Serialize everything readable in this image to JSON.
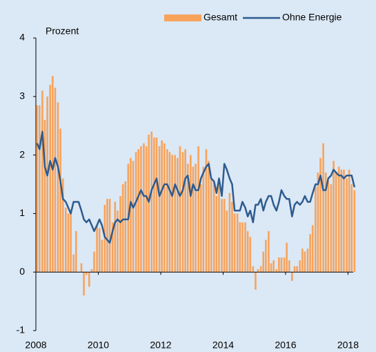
{
  "chart_data": {
    "type": "bar_line",
    "y_label": "Prozent",
    "xlim": [
      2008,
      2018.3
    ],
    "xticks": [
      2008,
      2010,
      2012,
      2014,
      2016,
      2018
    ],
    "ylim": [
      -1,
      4
    ],
    "yticks": [
      -1,
      0,
      1,
      2,
      3,
      4
    ],
    "legend": "top-right",
    "x": [
      2008,
      2008.08,
      2008.17,
      2008.25,
      2008.33,
      2008.42,
      2008.5,
      2008.58,
      2008.67,
      2008.75,
      2008.83,
      2008.92,
      2009,
      2009.08,
      2009.17,
      2009.25,
      2009.33,
      2009.42,
      2009.5,
      2009.58,
      2009.67,
      2009.75,
      2009.83,
      2009.92,
      2010,
      2010.08,
      2010.17,
      2010.25,
      2010.33,
      2010.42,
      2010.5,
      2010.58,
      2010.67,
      2010.75,
      2010.83,
      2010.92,
      2011,
      2011.08,
      2011.17,
      2011.25,
      2011.33,
      2011.42,
      2011.5,
      2011.58,
      2011.67,
      2011.75,
      2011.83,
      2011.92,
      2012,
      2012.08,
      2012.17,
      2012.25,
      2012.33,
      2012.42,
      2012.5,
      2012.58,
      2012.67,
      2012.75,
      2012.83,
      2012.92,
      2013,
      2013.08,
      2013.17,
      2013.25,
      2013.33,
      2013.42,
      2013.5,
      2013.58,
      2013.67,
      2013.75,
      2013.83,
      2013.92,
      2014,
      2014.08,
      2014.17,
      2014.25,
      2014.33,
      2014.42,
      2014.5,
      2014.58,
      2014.67,
      2014.75,
      2014.83,
      2014.92,
      2015,
      2015.08,
      2015.17,
      2015.25,
      2015.33,
      2015.42,
      2015.5,
      2015.58,
      2015.67,
      2015.75,
      2015.83,
      2015.92,
      2016,
      2016.08,
      2016.17,
      2016.25,
      2016.33,
      2016.42,
      2016.5,
      2016.58,
      2016.67,
      2016.75,
      2016.83,
      2016.92,
      2017,
      2017.08,
      2017.17,
      2017.25,
      2017.33,
      2017.42,
      2017.5,
      2017.58,
      2017.67,
      2017.75,
      2017.83,
      2017.92,
      2018,
      2018.08,
      2018.17
    ],
    "series": [
      {
        "name": "Gesamt",
        "type": "bar",
        "color": "#f7a35c",
        "values": [
          2.85,
          2.85,
          3.1,
          2.6,
          3.0,
          3.2,
          3.35,
          3.15,
          2.9,
          2.45,
          1.6,
          1.1,
          1.0,
          1.0,
          0.3,
          0.7,
          0.0,
          0.15,
          -0.4,
          -0.05,
          -0.25,
          0.05,
          0.35,
          0.8,
          0.75,
          0.55,
          1.15,
          1.25,
          1.25,
          0.85,
          1.2,
          1.05,
          1.3,
          1.5,
          1.55,
          1.85,
          1.95,
          1.9,
          2.05,
          2.1,
          2.15,
          2.2,
          2.15,
          2.35,
          2.4,
          2.3,
          2.3,
          2.15,
          2.25,
          2.2,
          2.1,
          2.05,
          2.0,
          2.0,
          1.95,
          2.15,
          2.05,
          2.1,
          1.85,
          2.0,
          1.8,
          1.85,
          2.15,
          1.5,
          1.8,
          2.1,
          1.9,
          1.6,
          1.55,
          1.3,
          1.6,
          1.25,
          1.25,
          1.05,
          1.35,
          1.2,
          1.0,
          1.0,
          0.85,
          0.85,
          0.85,
          0.7,
          0.6,
          0.1,
          -0.3,
          0.05,
          0.1,
          0.35,
          0.55,
          0.7,
          0.15,
          0.2,
          0.05,
          0.25,
          0.25,
          0.25,
          0.5,
          0.2,
          -0.15,
          0.1,
          0.1,
          0.2,
          0.4,
          0.35,
          0.4,
          0.65,
          0.8,
          1.45,
          1.7,
          1.95,
          2.2,
          1.7,
          1.55,
          1.5,
          1.9,
          1.7,
          1.8,
          1.75,
          1.75,
          1.6,
          1.75,
          1.5,
          1.4
        ]
      },
      {
        "name": "Ohne Energie",
        "type": "line",
        "color": "#2d5b8e",
        "values": [
          2.2,
          2.1,
          2.4,
          1.8,
          1.65,
          1.9,
          1.75,
          1.95,
          1.8,
          1.55,
          1.25,
          1.2,
          1.1,
          1.0,
          1.2,
          1.2,
          1.2,
          1.05,
          0.9,
          0.85,
          0.9,
          0.8,
          0.7,
          0.8,
          0.9,
          0.8,
          0.6,
          0.55,
          0.5,
          0.7,
          0.85,
          0.9,
          0.85,
          0.9,
          0.9,
          0.9,
          1.2,
          1.1,
          1.2,
          1.3,
          1.4,
          1.3,
          1.3,
          1.2,
          1.4,
          1.5,
          1.6,
          1.3,
          1.4,
          1.5,
          1.5,
          1.4,
          1.3,
          1.5,
          1.4,
          1.3,
          1.4,
          1.6,
          1.65,
          1.3,
          1.5,
          1.4,
          1.4,
          1.6,
          1.7,
          1.8,
          1.85,
          1.6,
          1.55,
          1.35,
          1.6,
          1.3,
          1.85,
          1.75,
          1.6,
          1.5,
          1.05,
          1.05,
          1.05,
          1.2,
          1.1,
          0.95,
          1.05,
          0.85,
          1.15,
          1.15,
          1.25,
          1.05,
          1.2,
          1.3,
          1.3,
          1.15,
          1.05,
          1.2,
          1.4,
          1.3,
          1.25,
          1.25,
          0.95,
          1.15,
          1.2,
          1.15,
          1.2,
          1.3,
          1.2,
          1.2,
          1.35,
          1.5,
          1.5,
          1.65,
          1.4,
          1.4,
          1.6,
          1.65,
          1.75,
          1.7,
          1.65,
          1.65,
          1.6,
          1.65,
          1.65,
          1.65,
          1.45
        ]
      }
    ]
  }
}
